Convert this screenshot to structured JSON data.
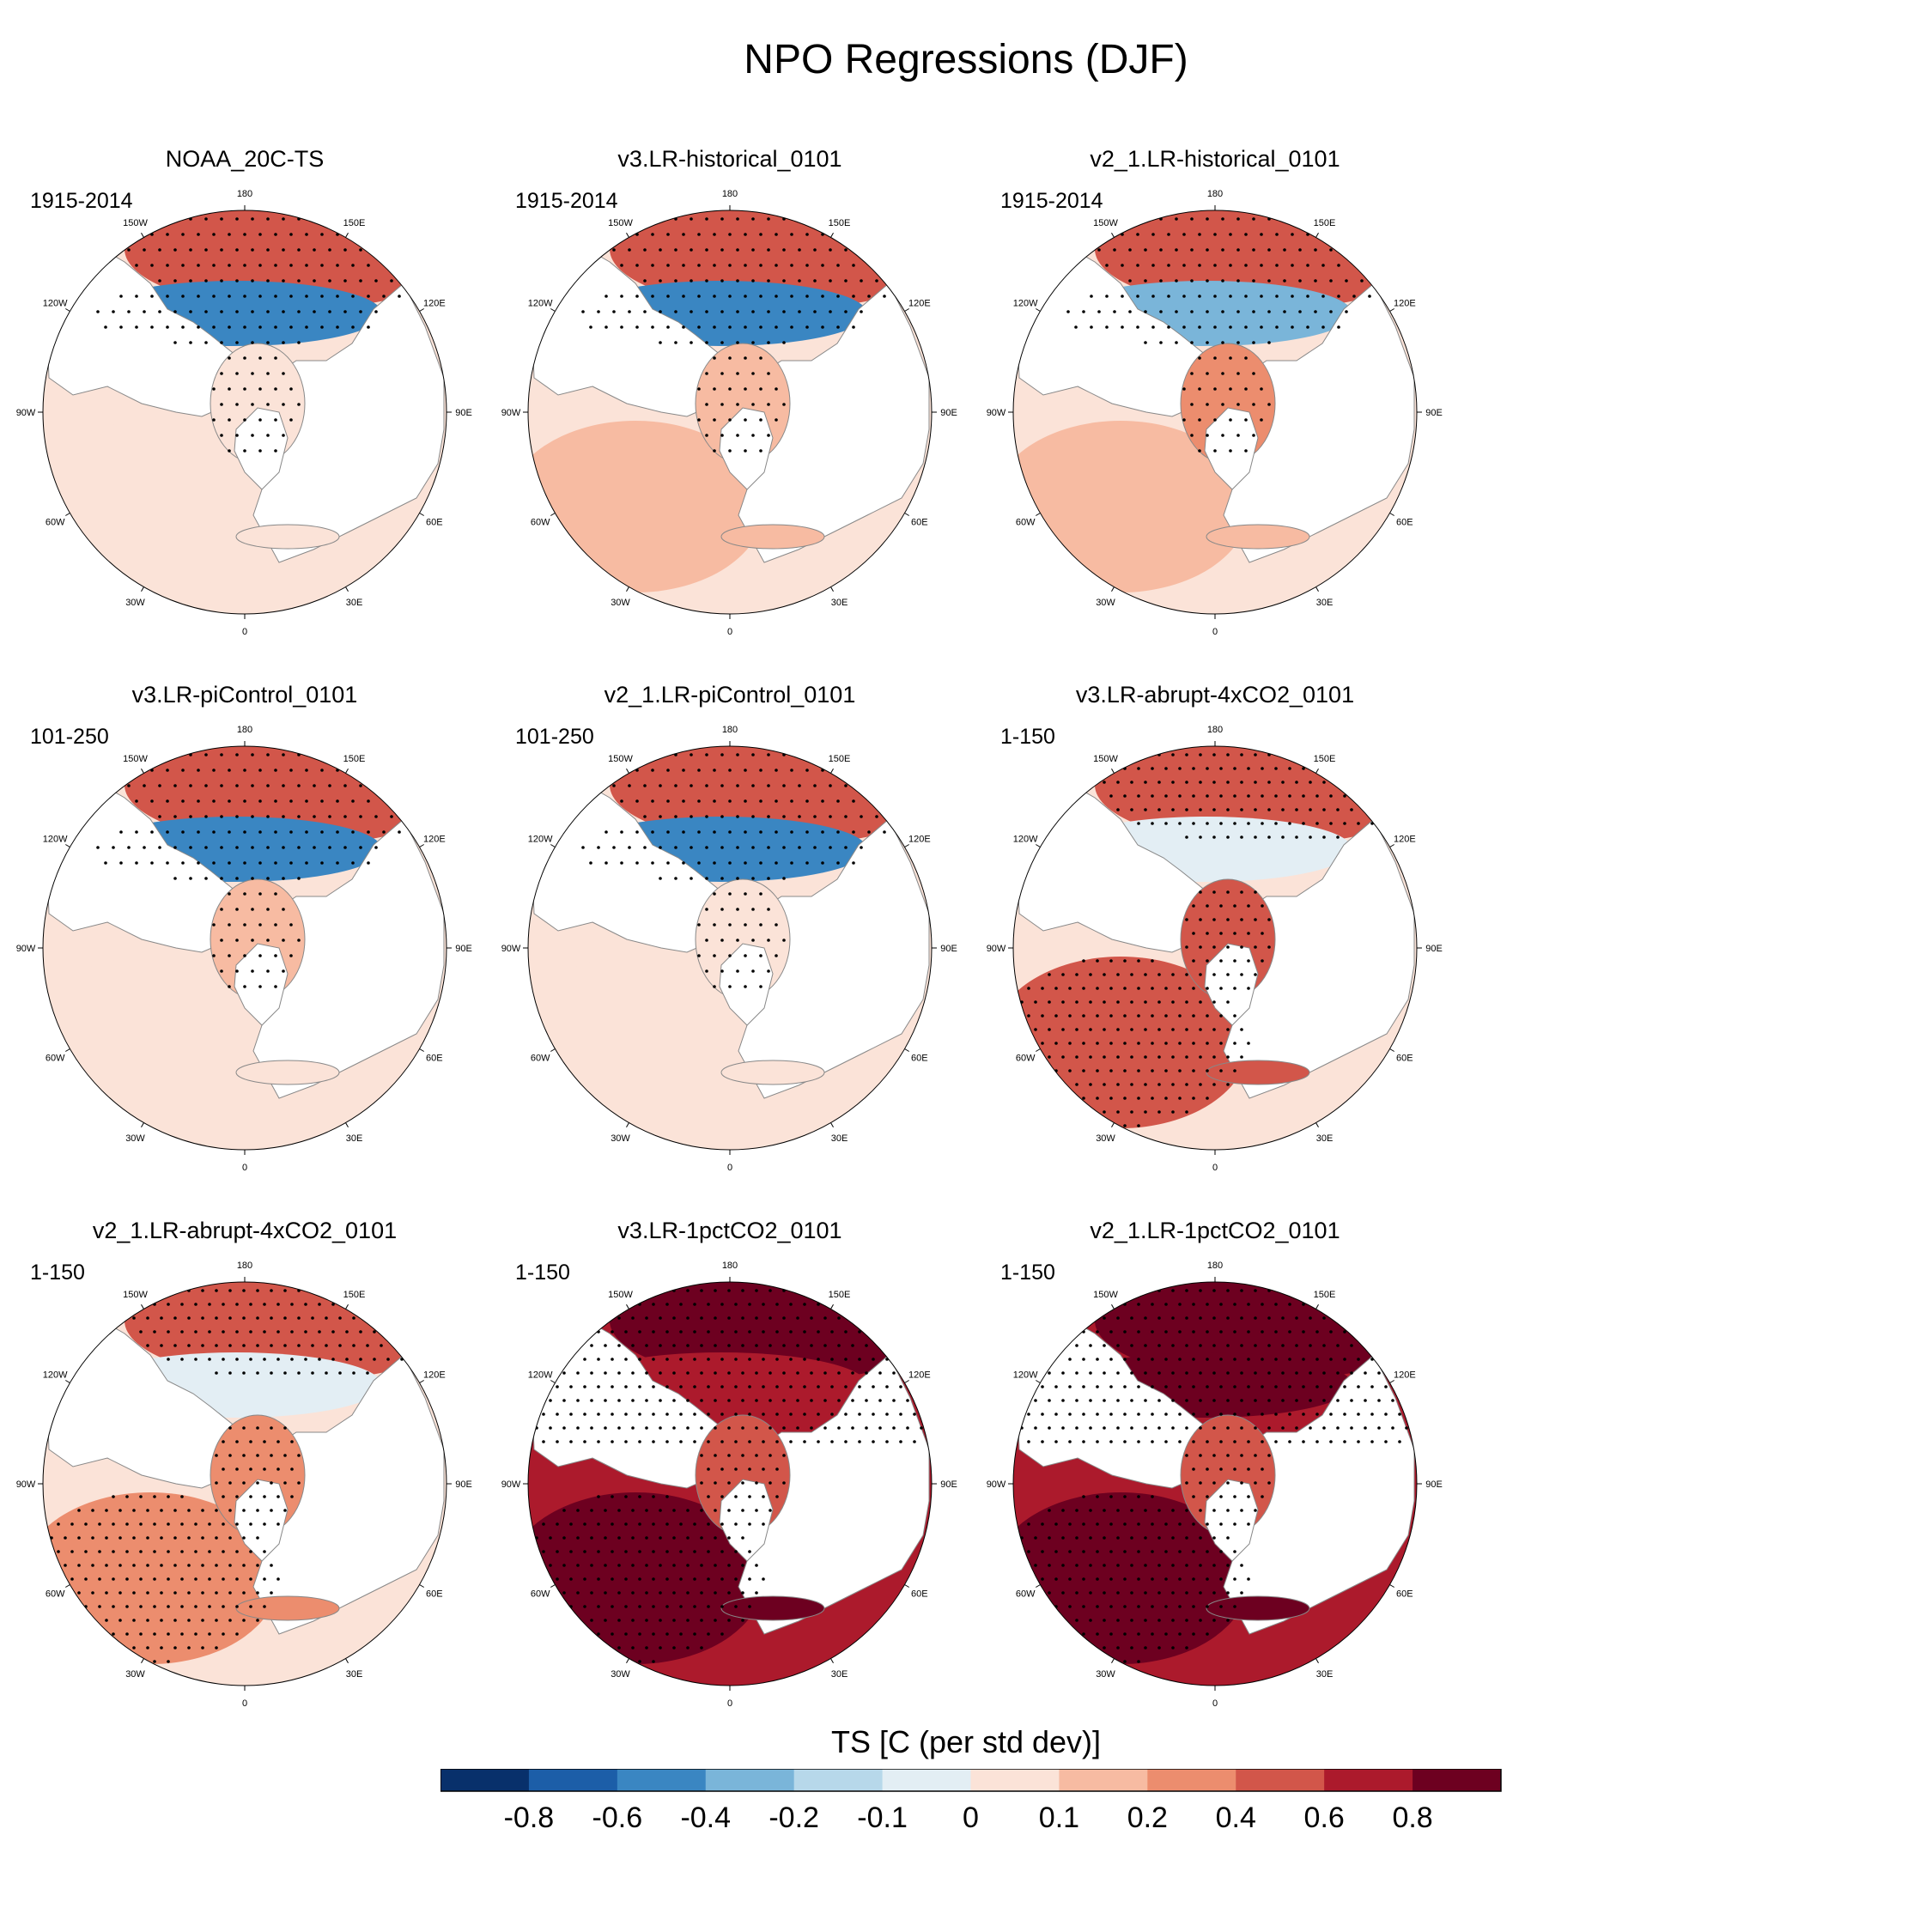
{
  "title": "NPO Regressions (DJF)",
  "colorbar": {
    "title": "TS [C (per std dev)]",
    "colors": [
      "#08306b",
      "#1c5ea8",
      "#3a86c2",
      "#7ab5d9",
      "#b7d8ea",
      "#e3eef4",
      "#fbe3d8",
      "#f7bba2",
      "#ec8d6e",
      "#d2564a",
      "#ac1a2c",
      "#6d0020"
    ],
    "labels": [
      "-0.8",
      "-0.6",
      "-0.4",
      "-0.2",
      "-0.1",
      "0",
      "0.1",
      "0.2",
      "0.4",
      "0.6",
      "0.8"
    ]
  },
  "lon_labels": [
    "180",
    "150E",
    "120E",
    "90E",
    "60E",
    "30E",
    "0",
    "30W",
    "60W",
    "90W",
    "120W",
    "150W"
  ],
  "chart_data": [
    {
      "type": "heatmap",
      "title": "NOAA_20C-TS",
      "period": "1915-2014",
      "pacific_pos": 0.5,
      "pacific_neg": -0.45,
      "atlantic": 0.08,
      "arctic": 0.06,
      "europe": 0.05,
      "stipple": "strong"
    },
    {
      "type": "heatmap",
      "title": "v3.LR-historical_0101",
      "period": "1915-2014",
      "pacific_pos": 0.45,
      "pacific_neg": -0.5,
      "atlantic": 0.15,
      "arctic": 0.1,
      "europe": 0.15,
      "stipple": "strong"
    },
    {
      "type": "heatmap",
      "title": "v2_1.LR-historical_0101",
      "period": "1915-2014",
      "pacific_pos": 0.5,
      "pacific_neg": -0.4,
      "atlantic": 0.1,
      "arctic": 0.2,
      "europe": 0.15,
      "stipple": "strong"
    },
    {
      "type": "heatmap",
      "title": "v3.LR-piControl_0101",
      "period": "101-250",
      "pacific_pos": 0.45,
      "pacific_neg": -0.55,
      "atlantic": 0.05,
      "arctic": 0.1,
      "europe": 0.05,
      "stipple": "strong"
    },
    {
      "type": "heatmap",
      "title": "v2_1.LR-piControl_0101",
      "period": "101-250",
      "pacific_pos": 0.45,
      "pacific_neg": -0.5,
      "atlantic": 0.05,
      "arctic": 0.05,
      "europe": 0.02,
      "stipple": "strong"
    },
    {
      "type": "heatmap",
      "title": "v3.LR-abrupt-4xCO2_0101",
      "period": "1-150",
      "pacific_pos": 0.55,
      "pacific_neg": -0.1,
      "atlantic": 0.45,
      "arctic": 0.5,
      "europe": 0.4,
      "stipple": "dense"
    },
    {
      "type": "heatmap",
      "title": "v2_1.LR-abrupt-4xCO2_0101",
      "period": "1-150",
      "pacific_pos": 0.5,
      "pacific_neg": -0.05,
      "atlantic": 0.25,
      "arctic": 0.35,
      "europe": 0.3,
      "stipple": "dense"
    },
    {
      "type": "heatmap",
      "title": "v3.LR-1pctCO2_0101",
      "period": "1-150",
      "pacific_pos": 0.9,
      "pacific_neg": 0.7,
      "atlantic": 0.85,
      "arctic": 0.4,
      "europe": 0.85,
      "stipple": "dense"
    },
    {
      "type": "heatmap",
      "title": "v2_1.LR-1pctCO2_0101",
      "period": "1-150",
      "pacific_pos": 0.95,
      "pacific_neg": 0.85,
      "atlantic": 0.9,
      "arctic": 0.5,
      "europe": 0.9,
      "stipple": "dense"
    }
  ]
}
